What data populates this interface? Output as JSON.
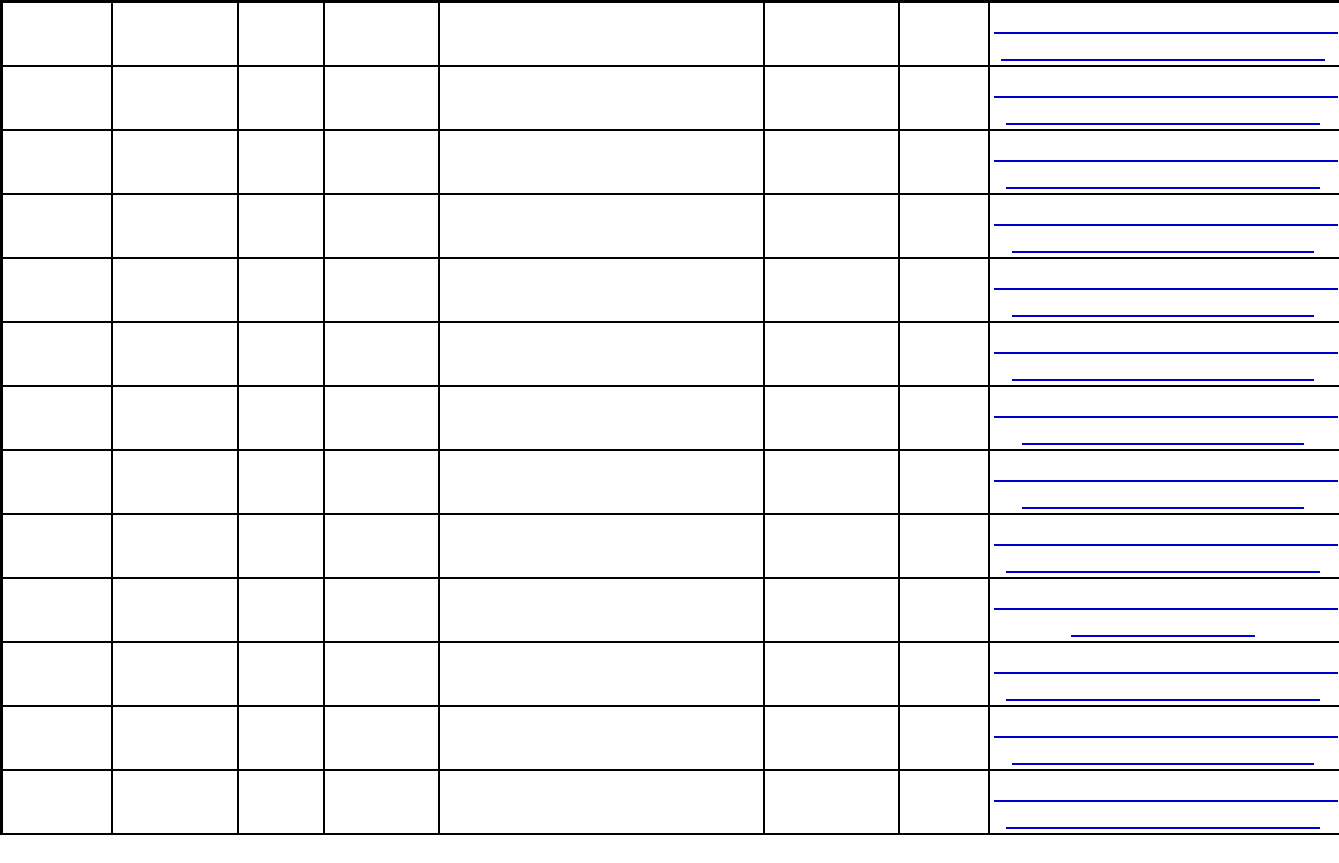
{
  "table": {
    "row_count": 13,
    "column_count": 8
  },
  "colors": {
    "border": "#000000",
    "link": "#0000cc"
  }
}
